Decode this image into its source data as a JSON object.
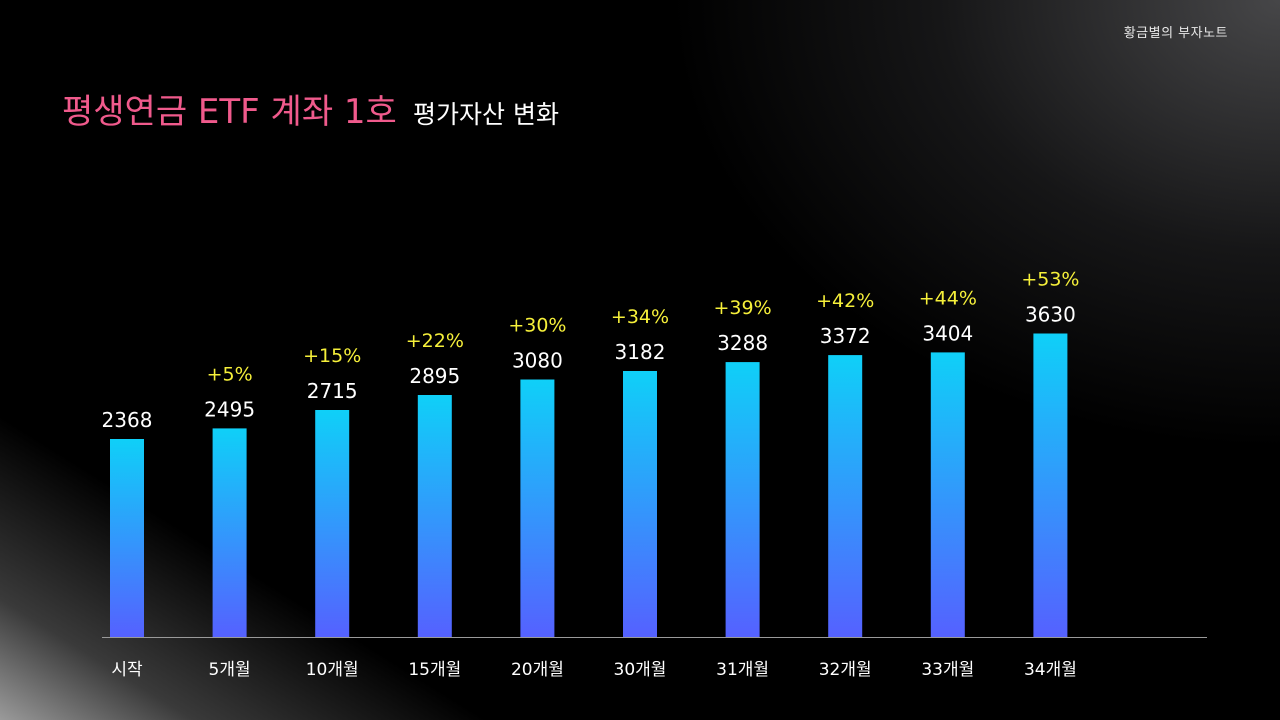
{
  "brand": "황금별의 부자노트",
  "title": {
    "main": "평생연금 ETF 계좌 1호",
    "sub": "평가자산 변화"
  },
  "colors": {
    "title_accent": "#f05a8c",
    "bar_top": "#0fd0f8",
    "bar_bottom": "#5561ff",
    "percent_label": "#f6f03a"
  },
  "chart_data": {
    "type": "bar",
    "categories": [
      "시작",
      "5개월",
      "10개월",
      "15개월",
      "20개월",
      "30개월",
      "31개월",
      "32개월",
      "33개월",
      "34개월"
    ],
    "values": [
      2368,
      2495,
      2715,
      2895,
      3080,
      3182,
      3288,
      3372,
      3404,
      3630
    ],
    "growth_labels": [
      "",
      "+5%",
      "+15%",
      "+22%",
      "+30%",
      "+34%",
      "+39%",
      "+42%",
      "+44%",
      "+53%"
    ],
    "ylim": [
      0,
      4000
    ],
    "grid": false,
    "legend": "none"
  }
}
